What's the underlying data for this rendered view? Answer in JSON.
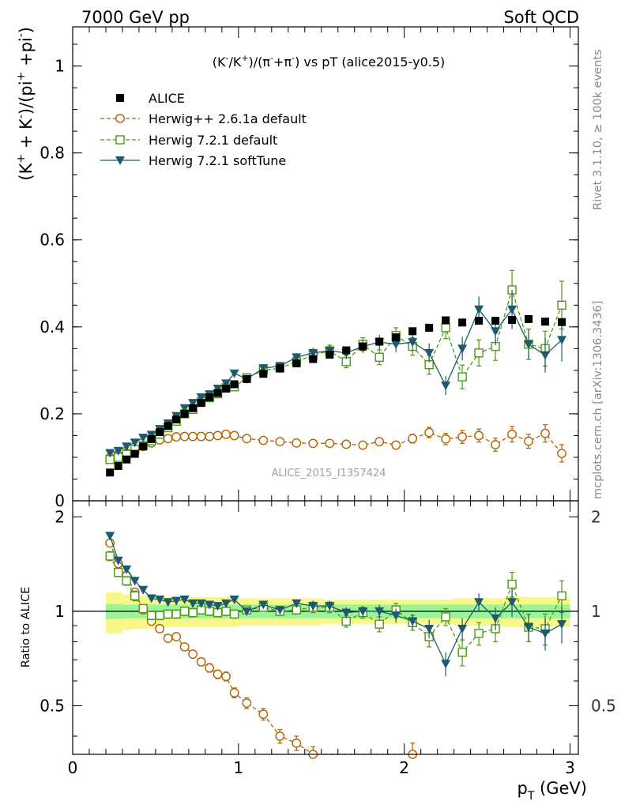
{
  "header": {
    "left": "7000 GeV pp",
    "right": "Soft QCD"
  },
  "side_labels": {
    "rivet": "Rivet 3.1.10, ≥ 100k events",
    "mcplots": "mcplots.cern.ch [arXiv:1306.3436]"
  },
  "watermark": "ALICE_2015_I1357424",
  "colors": {
    "alice": "#000000",
    "herwig261": "#b36200",
    "herwig721": "#4c9a10",
    "softtune": "#1d5a6e",
    "band_inner": "#9af59a",
    "band_outer": "#f8f88a"
  },
  "chart_data": [
    {
      "type": "scatter",
      "panel": "main",
      "title_parts": {
        "a": "(K",
        "a_sup": "-",
        "b": "/K",
        "b_sup": "+",
        "c": ")/(π",
        "c_sup": "-",
        "d": "+π",
        "d_sup": "-",
        "e": ") vs pT (alice2015-y0.5)"
      },
      "ylabel_parts": {
        "a": "(K",
        "a_sup": "+",
        "b": " + K",
        "b_sup": "-",
        "c": ")/(pi",
        "c_sup": "+",
        "d": " +pi",
        "d_sup": "-",
        "e": ")"
      },
      "xlim": [
        0,
        3.05
      ],
      "ylim": [
        0,
        1.09
      ],
      "yticks": [
        {
          "v": 0,
          "label": "0"
        },
        {
          "v": 0.2,
          "label": "0.2"
        },
        {
          "v": 0.4,
          "label": "0.4"
        },
        {
          "v": 0.6,
          "label": "0.6"
        },
        {
          "v": 0.8,
          "label": "0.8"
        },
        {
          "v": 1,
          "label": "1"
        }
      ],
      "legend_position": "top-left",
      "series": [
        {
          "key": "alice",
          "name": "ALICE",
          "marker": "filled-square",
          "x": [
            0.225,
            0.275,
            0.325,
            0.375,
            0.425,
            0.475,
            0.525,
            0.575,
            0.625,
            0.675,
            0.725,
            0.775,
            0.825,
            0.875,
            0.925,
            0.975,
            1.05,
            1.15,
            1.25,
            1.35,
            1.45,
            1.55,
            1.65,
            1.75,
            1.85,
            1.95,
            2.05,
            2.15,
            2.25,
            2.35,
            2.45,
            2.55,
            2.65,
            2.75,
            2.85,
            2.95
          ],
          "y": [
            0.065,
            0.08,
            0.095,
            0.108,
            0.125,
            0.142,
            0.158,
            0.172,
            0.187,
            0.2,
            0.213,
            0.225,
            0.238,
            0.248,
            0.258,
            0.268,
            0.28,
            0.292,
            0.305,
            0.316,
            0.326,
            0.336,
            0.346,
            0.355,
            0.366,
            0.376,
            0.39,
            0.398,
            0.415,
            0.41,
            0.414,
            0.414,
            0.416,
            0.418,
            0.412,
            0.411
          ]
        },
        {
          "key": "herwig261",
          "name": "Herwig++ 2.6.1a default",
          "marker": "open-circle",
          "line": "dashed",
          "x": [
            0.225,
            0.275,
            0.325,
            0.375,
            0.425,
            0.475,
            0.525,
            0.575,
            0.625,
            0.675,
            0.725,
            0.775,
            0.825,
            0.875,
            0.925,
            0.975,
            1.05,
            1.15,
            1.25,
            1.35,
            1.45,
            1.55,
            1.65,
            1.75,
            1.85,
            1.95,
            2.05,
            2.15,
            2.25,
            2.35,
            2.45,
            2.55,
            2.65,
            2.75,
            2.85,
            2.95
          ],
          "y": [
            0.1,
            0.105,
            0.11,
            0.117,
            0.125,
            0.133,
            0.14,
            0.143,
            0.147,
            0.148,
            0.148,
            0.148,
            0.148,
            0.15,
            0.153,
            0.15,
            0.143,
            0.139,
            0.136,
            0.133,
            0.132,
            0.132,
            0.13,
            0.128,
            0.136,
            0.128,
            0.143,
            0.157,
            0.142,
            0.147,
            0.15,
            0.129,
            0.153,
            0.137,
            0.155,
            0.109
          ],
          "err": [
            0.005,
            0.005,
            0.005,
            0.005,
            0.005,
            0.005,
            0.005,
            0.005,
            0.005,
            0.005,
            0.005,
            0.005,
            0.005,
            0.005,
            0.005,
            0.005,
            0.006,
            0.006,
            0.006,
            0.006,
            0.007,
            0.007,
            0.007,
            0.007,
            0.008,
            0.008,
            0.01,
            0.012,
            0.013,
            0.015,
            0.015,
            0.015,
            0.018,
            0.016,
            0.02,
            0.02
          ]
        },
        {
          "key": "herwig721",
          "name": "Herwig 7.2.1 default",
          "marker": "open-square",
          "line": "dashed",
          "x": [
            0.225,
            0.275,
            0.325,
            0.375,
            0.425,
            0.475,
            0.525,
            0.575,
            0.625,
            0.675,
            0.725,
            0.775,
            0.825,
            0.875,
            0.925,
            0.975,
            1.05,
            1.15,
            1.25,
            1.35,
            1.45,
            1.55,
            1.65,
            1.75,
            1.85,
            1.95,
            2.05,
            2.15,
            2.25,
            2.35,
            2.45,
            2.55,
            2.65,
            2.75,
            2.85,
            2.95
          ],
          "y": [
            0.095,
            0.1,
            0.107,
            0.118,
            0.127,
            0.138,
            0.153,
            0.168,
            0.183,
            0.2,
            0.21,
            0.228,
            0.237,
            0.246,
            0.26,
            0.262,
            0.283,
            0.3,
            0.305,
            0.32,
            0.335,
            0.345,
            0.32,
            0.36,
            0.33,
            0.38,
            0.355,
            0.313,
            0.398,
            0.285,
            0.34,
            0.355,
            0.485,
            0.36,
            0.35,
            0.45
          ],
          "err": [
            0.004,
            0.004,
            0.004,
            0.004,
            0.004,
            0.004,
            0.005,
            0.005,
            0.005,
            0.005,
            0.006,
            0.006,
            0.006,
            0.007,
            0.007,
            0.008,
            0.008,
            0.009,
            0.01,
            0.01,
            0.012,
            0.013,
            0.014,
            0.015,
            0.017,
            0.018,
            0.02,
            0.022,
            0.025,
            0.027,
            0.03,
            0.032,
            0.045,
            0.035,
            0.04,
            0.055
          ]
        },
        {
          "key": "softtune",
          "name": "Herwig 7.2.1 softTune",
          "marker": "filled-triangle-down",
          "line": "solid",
          "x": [
            0.225,
            0.275,
            0.325,
            0.375,
            0.425,
            0.475,
            0.525,
            0.575,
            0.625,
            0.675,
            0.725,
            0.775,
            0.825,
            0.875,
            0.925,
            0.975,
            1.05,
            1.15,
            1.25,
            1.35,
            1.45,
            1.55,
            1.65,
            1.75,
            1.85,
            1.95,
            2.05,
            2.15,
            2.25,
            2.35,
            2.45,
            2.55,
            2.65,
            2.75,
            2.85,
            2.95
          ],
          "y": [
            0.11,
            0.115,
            0.125,
            0.134,
            0.145,
            0.152,
            0.165,
            0.178,
            0.195,
            0.213,
            0.225,
            0.238,
            0.245,
            0.258,
            0.27,
            0.293,
            0.28,
            0.305,
            0.31,
            0.33,
            0.34,
            0.345,
            0.34,
            0.355,
            0.365,
            0.36,
            0.365,
            0.34,
            0.265,
            0.35,
            0.44,
            0.39,
            0.44,
            0.36,
            0.335,
            0.37
          ],
          "err": [
            0.004,
            0.004,
            0.004,
            0.004,
            0.004,
            0.004,
            0.005,
            0.005,
            0.005,
            0.005,
            0.006,
            0.006,
            0.006,
            0.007,
            0.007,
            0.008,
            0.008,
            0.009,
            0.01,
            0.01,
            0.012,
            0.013,
            0.014,
            0.015,
            0.017,
            0.018,
            0.02,
            0.022,
            0.022,
            0.027,
            0.03,
            0.032,
            0.045,
            0.035,
            0.04,
            0.05
          ]
        }
      ]
    },
    {
      "type": "scatter",
      "panel": "ratio",
      "ylabel": "Ratio to ALICE",
      "xlabel_parts": {
        "a": "p",
        "a_sub": "T",
        "b": " (GeV)"
      },
      "xlim": [
        0,
        3.05
      ],
      "ylim": [
        0.35,
        2.25
      ],
      "xticks": [
        {
          "v": 0,
          "label": "0"
        },
        {
          "v": 1,
          "label": "1"
        },
        {
          "v": 2,
          "label": "2"
        },
        {
          "v": 3,
          "label": "3"
        }
      ],
      "yticks": [
        {
          "v": 0.5,
          "label": "0.5"
        },
        {
          "v": 1,
          "label": "1"
        },
        {
          "v": 2,
          "label": "2"
        }
      ],
      "band": {
        "x_edges": [
          0.2,
          0.25,
          0.3,
          0.35,
          0.4,
          0.45,
          0.5,
          0.55,
          0.6,
          0.65,
          0.7,
          0.75,
          0.8,
          0.85,
          0.9,
          0.95,
          1.0,
          1.1,
          1.2,
          1.3,
          1.4,
          1.5,
          1.6,
          1.7,
          1.8,
          1.9,
          2.0,
          2.1,
          2.2,
          2.3,
          2.4,
          2.5,
          2.6,
          2.7,
          2.8,
          2.9,
          3.0
        ],
        "inner": [
          0.055,
          0.055,
          0.05,
          0.05,
          0.05,
          0.05,
          0.05,
          0.05,
          0.05,
          0.05,
          0.05,
          0.05,
          0.05,
          0.05,
          0.05,
          0.05,
          0.05,
          0.05,
          0.05,
          0.05,
          0.05,
          0.05,
          0.05,
          0.05,
          0.05,
          0.05,
          0.05,
          0.05,
          0.05,
          0.05,
          0.05,
          0.05,
          0.05,
          0.05,
          0.05,
          0.05
        ],
        "outer": [
          0.15,
          0.15,
          0.13,
          0.12,
          0.12,
          0.12,
          0.11,
          0.11,
          0.11,
          0.11,
          0.11,
          0.11,
          0.11,
          0.11,
          0.11,
          0.11,
          0.1,
          0.1,
          0.1,
          0.1,
          0.1,
          0.09,
          0.09,
          0.09,
          0.09,
          0.09,
          0.09,
          0.09,
          0.09,
          0.1,
          0.1,
          0.1,
          0.11,
          0.11,
          0.11,
          0.11
        ]
      },
      "series": [
        {
          "key": "herwig261",
          "marker": "open-circle",
          "line": "dashed",
          "x": [
            0.225,
            0.275,
            0.325,
            0.375,
            0.425,
            0.475,
            0.525,
            0.575,
            0.625,
            0.675,
            0.725,
            0.775,
            0.825,
            0.875,
            0.925,
            0.975,
            1.05,
            1.15,
            1.25,
            1.35,
            1.45,
            2.05
          ],
          "y": [
            1.65,
            1.42,
            1.3,
            1.15,
            1.01,
            0.93,
            0.88,
            0.82,
            0.83,
            0.77,
            0.73,
            0.69,
            0.66,
            0.63,
            0.62,
            0.55,
            0.51,
            0.47,
            0.4,
            0.38,
            0.35,
            0.35
          ],
          "err": [
            0.02,
            0.02,
            0.02,
            0.02,
            0.02,
            0.02,
            0.02,
            0.02,
            0.02,
            0.02,
            0.02,
            0.02,
            0.02,
            0.02,
            0.02,
            0.02,
            0.02,
            0.02,
            0.02,
            0.02,
            0.02,
            0.03
          ]
        },
        {
          "key": "herwig721",
          "marker": "open-square",
          "line": "dashed",
          "x": [
            0.225,
            0.275,
            0.325,
            0.375,
            0.425,
            0.475,
            0.525,
            0.575,
            0.625,
            0.675,
            0.725,
            0.775,
            0.825,
            0.875,
            0.925,
            0.975,
            1.05,
            1.15,
            1.25,
            1.35,
            1.45,
            1.55,
            1.65,
            1.75,
            1.85,
            1.95,
            2.05,
            2.15,
            2.25,
            2.35,
            2.45,
            2.55,
            2.65,
            2.75,
            2.85,
            2.95
          ],
          "y": [
            1.5,
            1.33,
            1.25,
            1.12,
            1.02,
            0.97,
            0.97,
            0.98,
            0.98,
            1.0,
            0.99,
            1.01,
            1.0,
            0.99,
            1.0,
            0.98,
            1.01,
            1.03,
            1.0,
            1.01,
            1.03,
            1.03,
            0.93,
            0.99,
            0.91,
            1.01,
            0.92,
            0.83,
            0.96,
            0.74,
            0.85,
            0.88,
            1.22,
            0.89,
            0.88,
            1.12
          ],
          "err": [
            0.05,
            0.04,
            0.04,
            0.04,
            0.03,
            0.03,
            0.03,
            0.03,
            0.03,
            0.03,
            0.03,
            0.03,
            0.03,
            0.03,
            0.03,
            0.03,
            0.03,
            0.03,
            0.03,
            0.03,
            0.04,
            0.04,
            0.04,
            0.04,
            0.05,
            0.05,
            0.05,
            0.06,
            0.06,
            0.07,
            0.07,
            0.08,
            0.11,
            0.09,
            0.1,
            0.13
          ]
        },
        {
          "key": "softtune",
          "marker": "filled-triangle-down",
          "line": "solid",
          "x": [
            0.225,
            0.275,
            0.325,
            0.375,
            0.425,
            0.475,
            0.525,
            0.575,
            0.625,
            0.675,
            0.725,
            0.775,
            0.825,
            0.875,
            0.925,
            0.975,
            1.05,
            1.15,
            1.25,
            1.35,
            1.45,
            1.55,
            1.65,
            1.75,
            1.85,
            1.95,
            2.05,
            2.15,
            2.25,
            2.35,
            2.45,
            2.55,
            2.65,
            2.75,
            2.85,
            2.95
          ],
          "y": [
            1.74,
            1.45,
            1.36,
            1.25,
            1.17,
            1.1,
            1.09,
            1.07,
            1.08,
            1.09,
            1.06,
            1.06,
            1.05,
            1.04,
            1.06,
            1.09,
            1.0,
            1.05,
            1.01,
            1.06,
            1.04,
            1.04,
            0.99,
            1.0,
            1.0,
            0.97,
            0.93,
            0.88,
            0.68,
            0.88,
            1.07,
            0.95,
            1.07,
            0.89,
            0.85,
            0.91
          ],
          "err": [
            0.05,
            0.04,
            0.04,
            0.04,
            0.03,
            0.03,
            0.03,
            0.03,
            0.03,
            0.03,
            0.03,
            0.03,
            0.03,
            0.03,
            0.03,
            0.03,
            0.03,
            0.03,
            0.03,
            0.03,
            0.04,
            0.04,
            0.04,
            0.04,
            0.05,
            0.05,
            0.05,
            0.06,
            0.06,
            0.07,
            0.07,
            0.08,
            0.11,
            0.09,
            0.1,
            0.12
          ]
        }
      ]
    }
  ]
}
